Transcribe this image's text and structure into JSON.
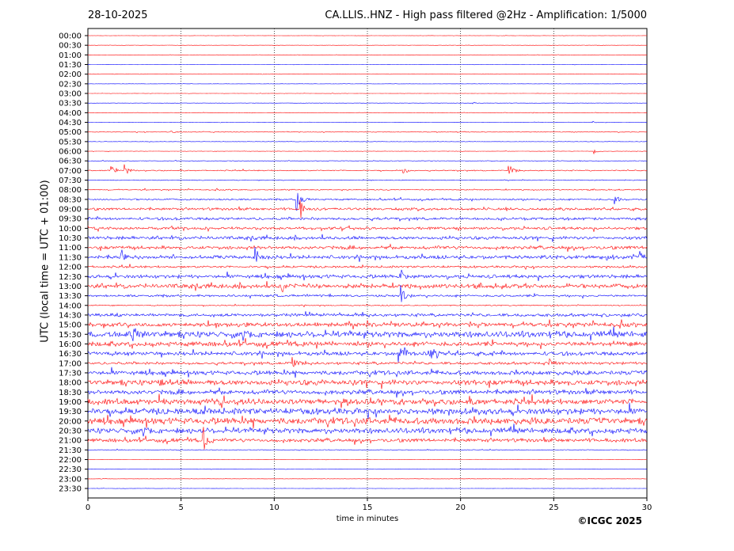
{
  "header": {
    "date": "28-10-2025",
    "title": "CA.LLIS..HNZ - High pass filtered @2Hz - Amplification: 1/5000"
  },
  "footer": {
    "copyright": "©ICGC 2025"
  },
  "colors": {
    "red_trace": "#ff0000",
    "blue_trace": "#0000ff",
    "grid": "#000000"
  },
  "chart_data": {
    "type": "line",
    "subtype": "helicorder",
    "xlabel": "time in minutes",
    "ylabel": "UTC (local time = UTC + 01:00)",
    "xlim": [
      0,
      30
    ],
    "xticks": [
      0,
      5,
      10,
      15,
      20,
      25,
      30
    ],
    "grid": "vertical dotted lines at x ticks",
    "rows": [
      "00:00",
      "00:30",
      "01:00",
      "01:30",
      "02:00",
      "02:30",
      "03:00",
      "03:30",
      "04:00",
      "04:30",
      "05:00",
      "05:30",
      "06:00",
      "06:30",
      "07:00",
      "07:30",
      "08:00",
      "08:30",
      "09:00",
      "09:30",
      "10:00",
      "10:30",
      "11:00",
      "11:30",
      "12:00",
      "12:30",
      "13:00",
      "13:30",
      "14:00",
      "14:30",
      "15:00",
      "15:30",
      "16:00",
      "16:30",
      "17:00",
      "17:30",
      "18:00",
      "18:30",
      "19:00",
      "19:30",
      "20:00",
      "20:30",
      "21:00",
      "21:30",
      "22:00",
      "22:30",
      "23:00",
      "23:30"
    ],
    "row_colors": [
      "red",
      "red",
      "red",
      "blue",
      "red",
      "blue",
      "red",
      "blue",
      "red",
      "blue",
      "red",
      "blue",
      "red",
      "blue",
      "red",
      "blue",
      "red",
      "blue",
      "red",
      "blue",
      "red",
      "blue",
      "red",
      "blue",
      "red",
      "blue",
      "red",
      "blue",
      "red",
      "blue",
      "red",
      "blue",
      "red",
      "blue",
      "red",
      "blue",
      "red",
      "blue",
      "red",
      "blue",
      "red",
      "blue",
      "red",
      "blue",
      "red",
      "blue",
      "red",
      "blue"
    ],
    "noise_level": [
      0.2,
      0.2,
      0.2,
      0.2,
      0.2,
      0.2,
      0.2,
      0.2,
      0.3,
      0.3,
      0.5,
      0.3,
      0.3,
      0.4,
      0.8,
      0.5,
      0.8,
      1.2,
      1.8,
      2.0,
      2.0,
      2.4,
      2.4,
      2.6,
      1.6,
      2.6,
      3.2,
      1.6,
      0.8,
      2.2,
      3.0,
      4.5,
      3.4,
      2.8,
      2.0,
      3.0,
      4.0,
      3.2,
      4.2,
      4.6,
      4.6,
      4.0,
      2.6,
      0.5,
      0.2,
      0.2,
      0.2,
      0.2
    ],
    "events": [
      {
        "row": "03:30",
        "t": 20.7,
        "amp": 2
      },
      {
        "row": "04:30",
        "t": 27.1,
        "amp": 2
      },
      {
        "row": "05:00",
        "t": 4.5,
        "amp": 2
      },
      {
        "row": "06:00",
        "t": 27.2,
        "amp": 4
      },
      {
        "row": "07:00",
        "t": 1.2,
        "amp": 8
      },
      {
        "row": "07:00",
        "t": 2.0,
        "amp": 10
      },
      {
        "row": "07:00",
        "t": 16.9,
        "amp": 10
      },
      {
        "row": "07:00",
        "t": 22.6,
        "amp": 14
      },
      {
        "row": "08:30",
        "t": 11.2,
        "amp": 26
      },
      {
        "row": "08:30",
        "t": 28.3,
        "amp": 6
      },
      {
        "row": "09:00",
        "t": 11.4,
        "amp": 14
      },
      {
        "row": "11:30",
        "t": 1.8,
        "amp": 10
      },
      {
        "row": "11:30",
        "t": 9.0,
        "amp": 16
      },
      {
        "row": "11:30",
        "t": 29.6,
        "amp": 14
      },
      {
        "row": "12:30",
        "t": 16.8,
        "amp": 10
      },
      {
        "row": "13:00",
        "t": 10.4,
        "amp": 10
      },
      {
        "row": "13:30",
        "t": 16.8,
        "amp": 14
      },
      {
        "row": "15:30",
        "t": 2.4,
        "amp": 10
      },
      {
        "row": "16:30",
        "t": 16.7,
        "amp": 18
      },
      {
        "row": "16:30",
        "t": 18.4,
        "amp": 16
      },
      {
        "row": "17:00",
        "t": 11.0,
        "amp": 14
      },
      {
        "row": "17:00",
        "t": 24.8,
        "amp": 12
      },
      {
        "row": "18:00",
        "t": 3.8,
        "amp": 12
      },
      {
        "row": "21:00",
        "t": 6.2,
        "amp": 18
      }
    ]
  }
}
